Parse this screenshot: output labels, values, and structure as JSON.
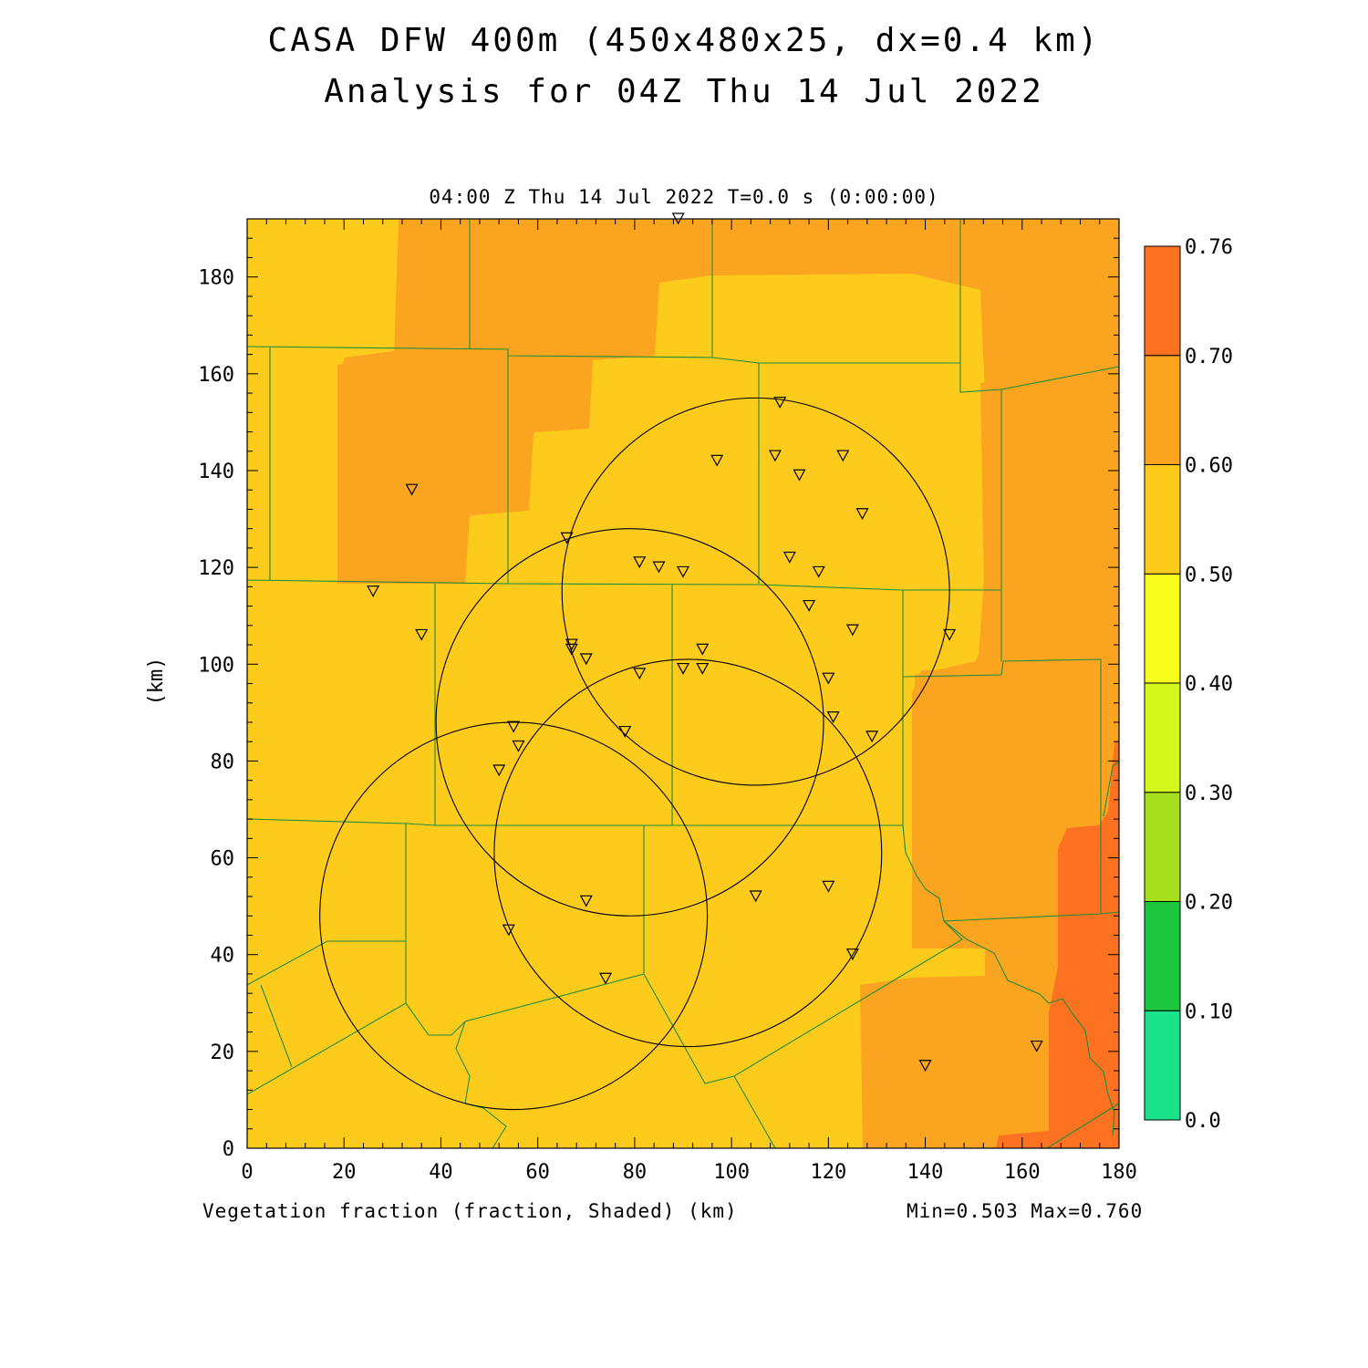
{
  "title_line1": "CASA DFW 400m (450x480x25, dx=0.4 km)",
  "title_line2": "Analysis for 04Z Thu 14 Jul 2022",
  "subtitle": "04:00 Z Thu 14 Jul 2022   T=0.0 s (0:00:00)",
  "footer_left": "Vegetation fraction (fraction, Shaded)  (km)",
  "footer_right": "Min=0.503 Max=0.760",
  "y_axis_label": "(km)",
  "colors": {
    "c050_060": "#fdcb1c",
    "c060_070": "#fba420",
    "c070_076": "#fd7220",
    "county_lines": "#1c8e3a",
    "radar": "#000000"
  },
  "chart_data": {
    "type": "heatmap",
    "xlim": [
      0,
      180
    ],
    "ylim": [
      0,
      192
    ],
    "x_ticks": [
      "0",
      "20",
      "40",
      "60",
      "80",
      "100",
      "120",
      "140",
      "160",
      "180"
    ],
    "y_ticks": [
      "0",
      "20",
      "40",
      "60",
      "80",
      "100",
      "120",
      "140",
      "160",
      "180"
    ],
    "colorbar": {
      "labels": [
        "0.0",
        "0.10",
        "0.20",
        "0.30",
        "0.40",
        "0.50",
        "0.60",
        "0.70",
        "0.76"
      ],
      "colors": [
        "#1ae38c",
        "#1bc53c",
        "#a6e01c",
        "#d4f81c",
        "#f9fd1c",
        "#fdcb1c",
        "#fba420",
        "#fd7220"
      ]
    },
    "radar_rings_km": [
      {
        "cx": 105,
        "cy": 115,
        "r": 40
      },
      {
        "cx": 79,
        "cy": 88,
        "r": 40
      },
      {
        "cx": 91,
        "cy": 61,
        "r": 40
      },
      {
        "cx": 55,
        "cy": 48,
        "r": 40
      }
    ],
    "stations_km": [
      [
        89,
        192
      ],
      [
        34,
        136
      ],
      [
        26,
        115
      ],
      [
        36,
        106
      ],
      [
        66,
        126
      ],
      [
        81,
        121
      ],
      [
        85,
        120
      ],
      [
        90,
        119
      ],
      [
        97,
        142
      ],
      [
        110,
        154
      ],
      [
        109,
        143
      ],
      [
        114,
        139
      ],
      [
        123,
        143
      ],
      [
        127,
        131
      ],
      [
        112,
        122
      ],
      [
        118,
        119
      ],
      [
        116,
        112
      ],
      [
        125,
        107
      ],
      [
        145,
        106
      ],
      [
        67,
        104
      ],
      [
        67,
        103
      ],
      [
        70,
        101
      ],
      [
        94,
        103
      ],
      [
        94,
        99
      ],
      [
        90,
        99
      ],
      [
        81,
        98
      ],
      [
        120,
        97
      ],
      [
        121,
        89
      ],
      [
        129,
        85
      ],
      [
        78,
        86
      ],
      [
        55,
        87
      ],
      [
        56,
        83
      ],
      [
        52,
        78
      ],
      [
        70,
        51
      ],
      [
        54,
        45
      ],
      [
        74,
        35
      ],
      [
        105,
        52
      ],
      [
        120,
        54
      ],
      [
        125,
        40
      ],
      [
        140,
        17
      ],
      [
        163,
        21
      ]
    ],
    "min": 0.503,
    "max": 0.76
  }
}
